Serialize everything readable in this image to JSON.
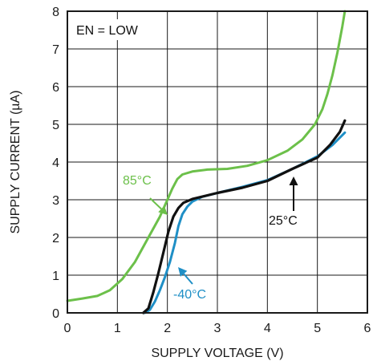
{
  "chart_data": {
    "type": "line",
    "xlabel": "SUPPLY VOLTAGE (V)",
    "ylabel": "SUPPLY CURRENT (µA)",
    "xlim": [
      0,
      6
    ],
    "ylim": [
      0,
      8
    ],
    "x_ticks": [
      "0",
      "1",
      "2",
      "3",
      "4",
      "5",
      "6"
    ],
    "y_ticks": [
      "0",
      "1",
      "2",
      "3",
      "4",
      "5",
      "6",
      "7",
      "8"
    ],
    "grid": true,
    "series": [
      {
        "name": "85°C",
        "color": "#6cc04a",
        "x": [
          0,
          0.3,
          0.6,
          0.85,
          1.1,
          1.35,
          1.6,
          1.85,
          2.0,
          2.1,
          2.2,
          2.3,
          2.5,
          2.8,
          3.2,
          3.6,
          4.0,
          4.4,
          4.7,
          4.95,
          5.1,
          5.2,
          5.3,
          5.4,
          5.5,
          5.55
        ],
        "y": [
          0.32,
          0.38,
          0.45,
          0.6,
          0.9,
          1.35,
          1.95,
          2.55,
          3.0,
          3.3,
          3.55,
          3.67,
          3.75,
          3.8,
          3.82,
          3.9,
          4.05,
          4.3,
          4.6,
          5.0,
          5.4,
          5.8,
          6.3,
          6.9,
          7.6,
          8.0
        ]
      },
      {
        "name": "25°C",
        "color": "#111111",
        "x": [
          1.52,
          1.62,
          1.72,
          1.82,
          1.92,
          2.02,
          2.12,
          2.22,
          2.32,
          2.5,
          3.0,
          3.5,
          4.0,
          4.5,
          5.0,
          5.25,
          5.45,
          5.55
        ],
        "y": [
          0.0,
          0.12,
          0.55,
          1.05,
          1.6,
          2.15,
          2.55,
          2.78,
          2.92,
          3.02,
          3.18,
          3.32,
          3.5,
          3.82,
          4.12,
          4.45,
          4.8,
          5.1
        ]
      },
      {
        "name": "-40°C",
        "color": "#1f8fc6",
        "x": [
          1.55,
          1.65,
          1.75,
          1.85,
          1.95,
          2.05,
          2.15,
          2.22,
          2.3,
          2.4,
          2.5,
          2.7,
          3.0,
          3.5,
          4.0,
          4.5,
          5.0,
          5.3,
          5.55
        ],
        "y": [
          0.0,
          0.08,
          0.3,
          0.6,
          0.95,
          1.35,
          1.85,
          2.3,
          2.62,
          2.82,
          2.95,
          3.08,
          3.18,
          3.34,
          3.52,
          3.82,
          4.15,
          4.45,
          4.78
        ]
      }
    ],
    "annotations": [
      {
        "text": "EN = LOW",
        "color": "#111111"
      },
      {
        "text": "85°C",
        "color": "#6cc04a"
      },
      {
        "text": "25°C",
        "color": "#111111"
      },
      {
        "text": "-40°C",
        "color": "#1f8fc6"
      }
    ]
  }
}
